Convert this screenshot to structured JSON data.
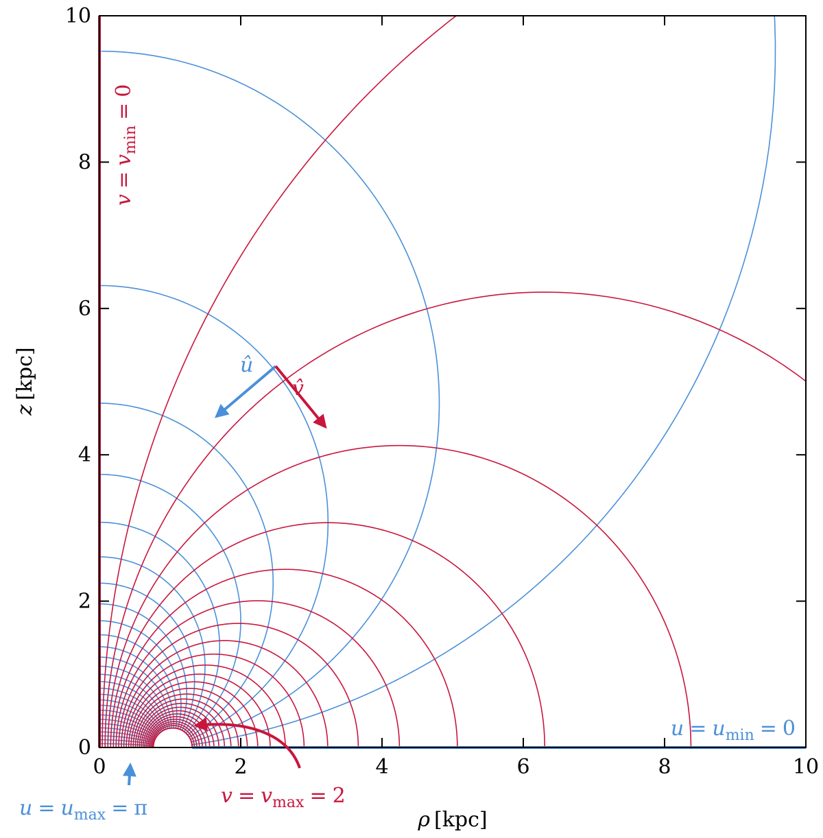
{
  "chart_data": {
    "type": "line",
    "title": "",
    "xlabel": {
      "symbol": "ρ",
      "unit": "[kpc]"
    },
    "ylabel": {
      "symbol": "z",
      "unit": "[kpc]"
    },
    "xlim": [
      0,
      10
    ],
    "ylim": [
      0,
      10
    ],
    "xticks": [
      "0",
      "2",
      "4",
      "6",
      "8",
      "10"
    ],
    "yticks": [
      "0",
      "2",
      "4",
      "6",
      "8",
      "10"
    ],
    "grid": false,
    "coordinate_system": "toroidal (bispherical) coordinates with focal distance a = 1 kpc",
    "colors": {
      "u_lines": "#4a90d9",
      "v_lines": "#c8163c",
      "axes": "#000000"
    },
    "series": [
      {
        "name": "u",
        "values": [
          0.1047,
          0.2094,
          0.3142,
          0.4189,
          0.5236,
          0.6283,
          0.733,
          0.8378,
          0.9425,
          1.0472,
          1.1519,
          1.2566,
          1.3614,
          1.4661,
          1.5708,
          1.6755,
          1.7802,
          1.885,
          1.9897,
          2.0944,
          2.1991,
          2.3038,
          2.4086,
          2.5133,
          2.618,
          2.7227,
          2.8274,
          2.9322,
          3.0369
        ]
      },
      {
        "name": "v",
        "values": [
          0.08,
          0.16,
          0.24,
          0.32,
          0.4,
          0.48,
          0.56,
          0.64,
          0.72,
          0.8,
          0.88,
          0.96,
          1.04,
          1.12,
          1.2,
          1.28,
          1.36,
          1.44,
          1.52,
          1.6,
          1.68,
          1.76,
          1.84,
          1.92
        ]
      }
    ],
    "annotations": {
      "v_min": {
        "var": "v",
        "op1": "=",
        "sym": "v",
        "sub": "min",
        "op2": "=",
        "val": "0"
      },
      "u_min": {
        "var": "u",
        "op1": "=",
        "sym": "u",
        "sub": "min",
        "op2": "=",
        "val": "0"
      },
      "u_max": {
        "var": "u",
        "op1": "=",
        "sym": "u",
        "sub": "max",
        "op2": "=",
        "val": "π"
      },
      "v_max": {
        "var": "v",
        "op1": "=",
        "sym": "v",
        "sub": "max",
        "op2": "=",
        "val": "2"
      },
      "u_hat": "û",
      "v_hat": "v̂"
    }
  }
}
